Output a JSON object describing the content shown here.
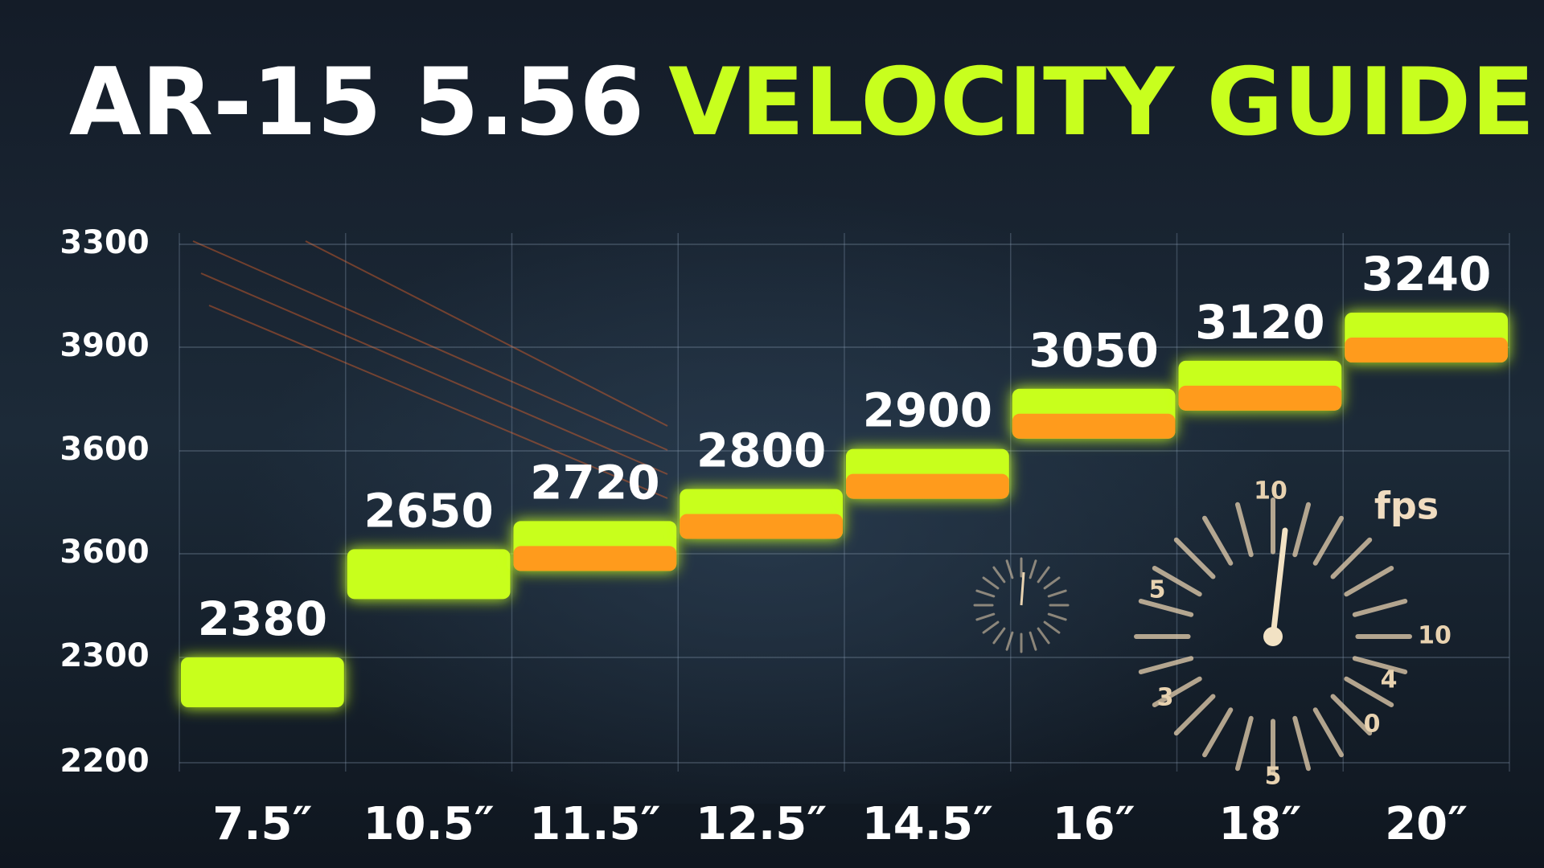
{
  "chart_data": {
    "type": "bar",
    "title": {
      "lead": "AR-15 5.56",
      "accent": "VELOCITY GUIDE"
    },
    "y_axis_labels": [
      "3300",
      "3900",
      "3600",
      "3600",
      "2300",
      "2200"
    ],
    "categories": [
      "7.5″",
      "10.5″",
      "11.5″",
      "12.5″",
      "14.5″",
      "16″",
      "18″",
      "20″"
    ],
    "values": [
      2380,
      2650,
      2720,
      2800,
      2900,
      3050,
      3120,
      3240
    ],
    "color": "#c8ff1e",
    "accent_color": "#ff9b1c",
    "grid": true,
    "gauge": {
      "unit": "fps",
      "labels": [
        "10",
        "5",
        "10",
        "4",
        "0",
        "3",
        "5"
      ]
    }
  }
}
